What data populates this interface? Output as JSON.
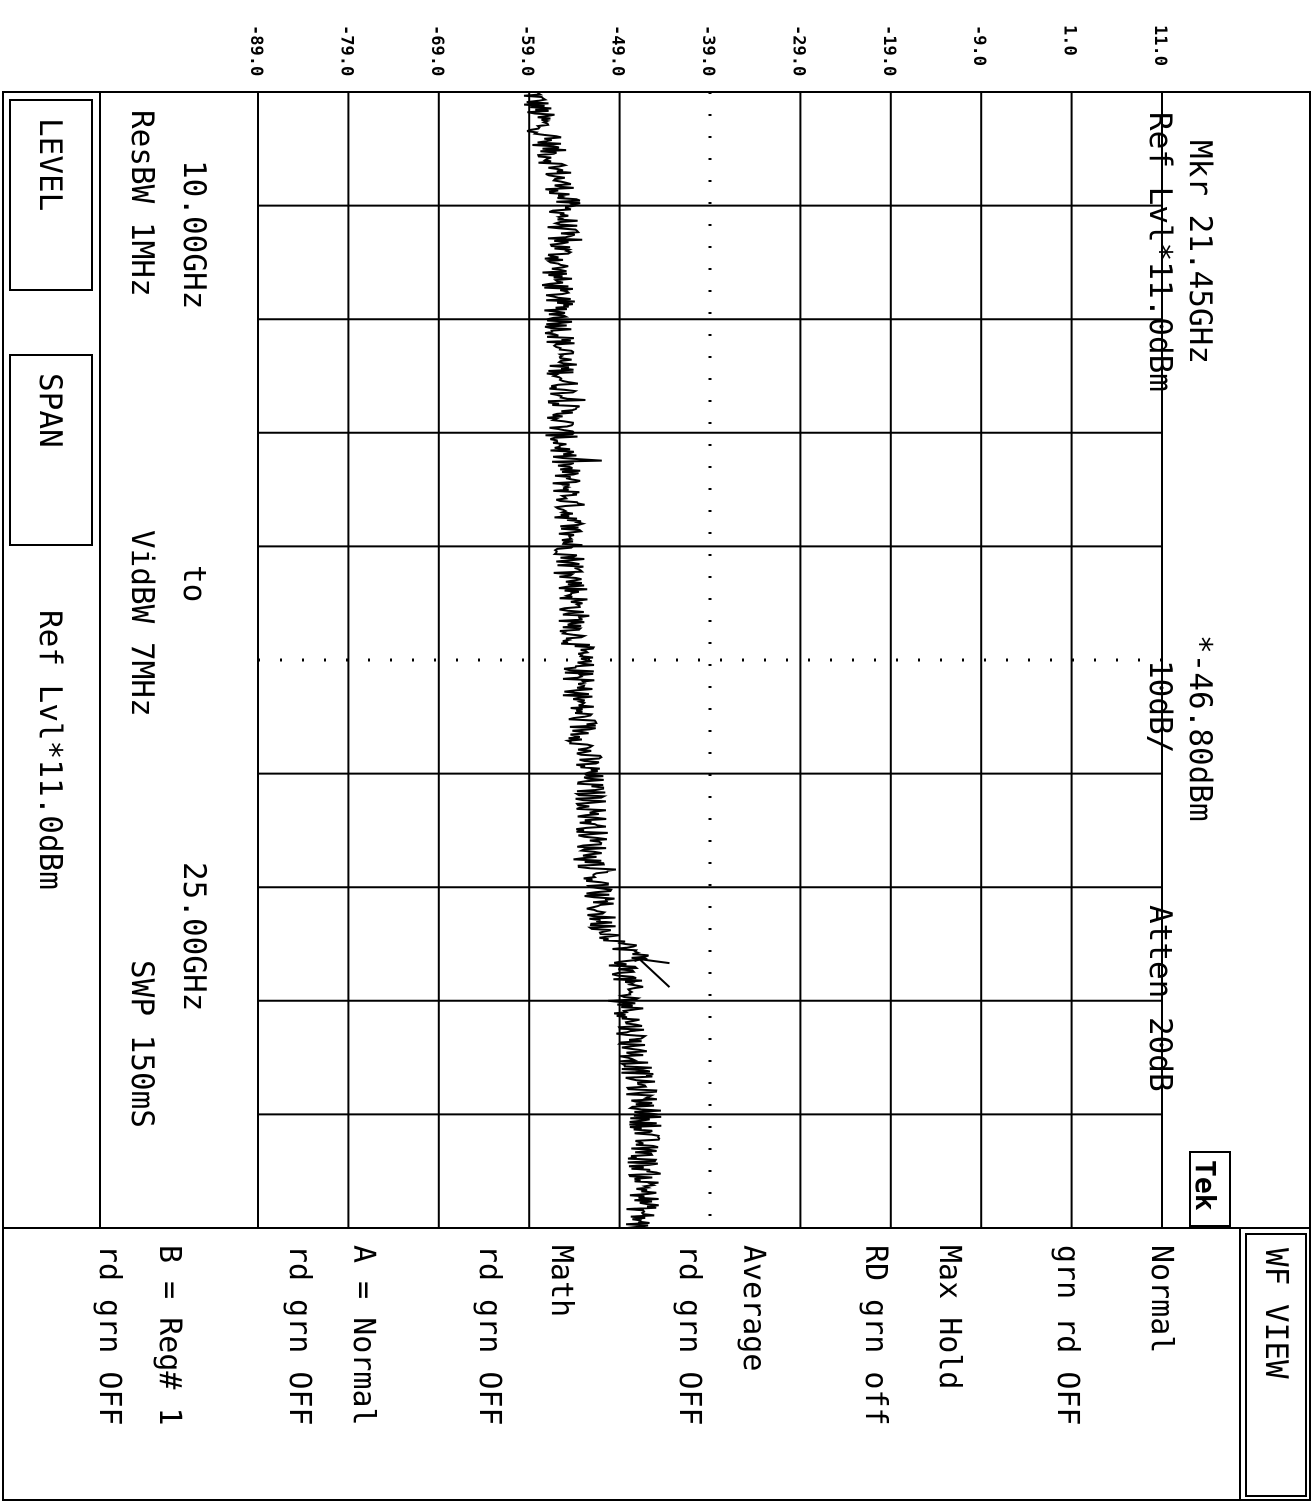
{
  "header": {
    "marker": "Mkr  21.45GHz",
    "marker_level": "*-46.80dBm",
    "ref_level": "Ref Lvl*11.0dBm",
    "scale": "10dB/",
    "atten": "Atten 20dB",
    "logo": "Tek"
  },
  "footer": {
    "start_freq": "10.00GHz",
    "to": "to",
    "stop_freq": "25.00GHz",
    "res_bw": "ResBW 1MHz",
    "vid_bw": "VidBW 7MHz",
    "sweep": "SWP 150mS",
    "ref_level": "Ref Lvl*11.0dBm"
  },
  "softkeys": {
    "level": "LEVEL",
    "span": "SPAN"
  },
  "menu": {
    "title": "WF VIEW",
    "items": [
      "Normal",
      "grn rd OFF",
      "Max Hold",
      "RD grn off",
      "Average",
      "rd grn OFF",
      "Math",
      "rd grn OFF",
      "A = Normal",
      "rd grn OFF",
      "B = Reg# 1",
      "rd grn OFF"
    ]
  },
  "chart_data": {
    "type": "line",
    "title": "",
    "xlabel": "",
    "ylabel": "",
    "x_unit": "GHz",
    "y_unit": "dBm",
    "xlim": [
      10.0,
      25.0
    ],
    "ylim": [
      -89.0,
      11.0
    ],
    "y_ticks": [
      11.0,
      1.0,
      -9.0,
      -19.0,
      -29.0,
      -39.0,
      -49.0,
      -59.0,
      -69.0,
      -79.0,
      -89.0
    ],
    "y_tick_labels": [
      "11.0",
      "1.0",
      "-9.0",
      "-19.0",
      "-29.0",
      "-39.0",
      "-49.0",
      "-59.0",
      "-69.0",
      "-79.0",
      "-89.0"
    ],
    "grid": true,
    "reference_level_dbm": 11.0,
    "marker": {
      "x": 21.45,
      "y": -46.8
    },
    "series": [
      {
        "x": [
          10.0,
          10.5,
          11.0,
          11.5,
          12.0,
          12.5,
          13.0,
          13.5,
          14.0,
          14.5,
          15.0,
          15.5,
          16.0,
          16.5,
          17.0,
          17.5,
          18.0,
          18.5,
          19.0,
          19.5,
          20.0,
          20.5,
          21.0,
          21.45,
          21.5,
          22.0,
          22.5,
          23.0,
          23.5,
          24.0,
          24.5,
          25.0
        ],
        "values": [
          -58.5,
          -57.5,
          -56.0,
          -55.0,
          -55.5,
          -56.0,
          -55.5,
          -55.5,
          -55.0,
          -55.5,
          -55.0,
          -54.5,
          -54.5,
          -54.0,
          -54.0,
          -53.5,
          -53.5,
          -53.0,
          -52.5,
          -52.0,
          -52.0,
          -51.5,
          -51.0,
          -46.8,
          -48.5,
          -48.0,
          -47.5,
          -47.0,
          -46.0,
          -46.5,
          -46.0,
          -47.0
        ],
        "noise_amplitude": 1.8
      }
    ]
  }
}
